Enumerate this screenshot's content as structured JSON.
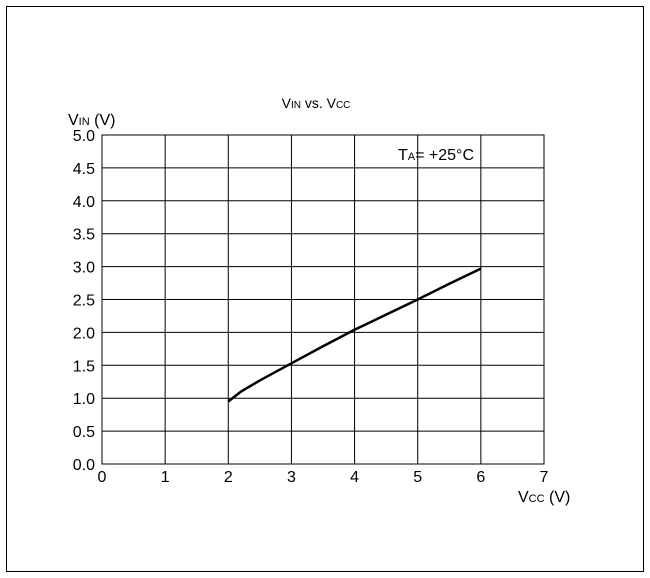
{
  "chart_data": {
    "type": "line",
    "title": {
      "main": "V",
      "sub": "IN",
      "rest": " vs. V",
      "sub2": "CC"
    },
    "ylabel": {
      "main": "V",
      "sub": "IN",
      "rest": " (V)"
    },
    "xlabel": {
      "main": "V",
      "sub": "CC",
      "rest": " (V)"
    },
    "annotation": {
      "main": "T",
      "sub": "A",
      "rest": "= +25°C"
    },
    "xlim": [
      0,
      7
    ],
    "ylim": [
      0.0,
      5.0
    ],
    "x_ticks": [
      "0",
      "1",
      "2",
      "3",
      "4",
      "5",
      "6",
      "7"
    ],
    "y_ticks": [
      "0.0",
      "0.5",
      "1.0",
      "1.5",
      "2.0",
      "2.5",
      "3.0",
      "3.5",
      "4.0",
      "4.5",
      "5.0"
    ],
    "grid": true,
    "series": [
      {
        "color": "#000000",
        "x": [
          2.0,
          2.2,
          2.5,
          3.0,
          3.5,
          4.0,
          4.5,
          5.0,
          5.5,
          6.0
        ],
        "y": [
          0.95,
          1.1,
          1.27,
          1.53,
          1.79,
          2.04,
          2.27,
          2.5,
          2.74,
          2.97
        ]
      }
    ]
  }
}
